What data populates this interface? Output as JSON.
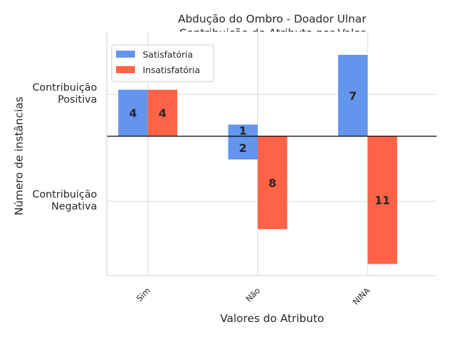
{
  "chart_data": {
    "type": "bar",
    "title": "Abdução do Ombro - Doador Ulnar",
    "subtitle": "Contribuição do Atributo por Valor",
    "xlabel": "Valores do Atributo",
    "ylabel": "Número de instâncias",
    "categories": [
      "Sim",
      "Não",
      "NINA"
    ],
    "ytick_labels": [
      {
        "lines": [
          "Contribuição",
          "Positiva"
        ],
        "value": 3.6
      },
      {
        "lines": [
          "Contribuição",
          "Negativa"
        ],
        "value": -5.6
      }
    ],
    "ylim": [
      -12,
      9
    ],
    "grid": true,
    "legend_position": "top-left",
    "series": [
      {
        "name": "Satisfatória",
        "color": "#6495ED",
        "values": [
          4,
          -2,
          7
        ],
        "labels": [
          "4",
          "2",
          "7"
        ],
        "stacked_positive": [
          0,
          1,
          0
        ],
        "stacked_labels": [
          "",
          "1",
          ""
        ]
      },
      {
        "name": "Insatisfatória",
        "color": "#FF6347",
        "values": [
          4,
          -8,
          -11
        ],
        "labels": [
          "4",
          "8",
          "11"
        ]
      }
    ]
  }
}
